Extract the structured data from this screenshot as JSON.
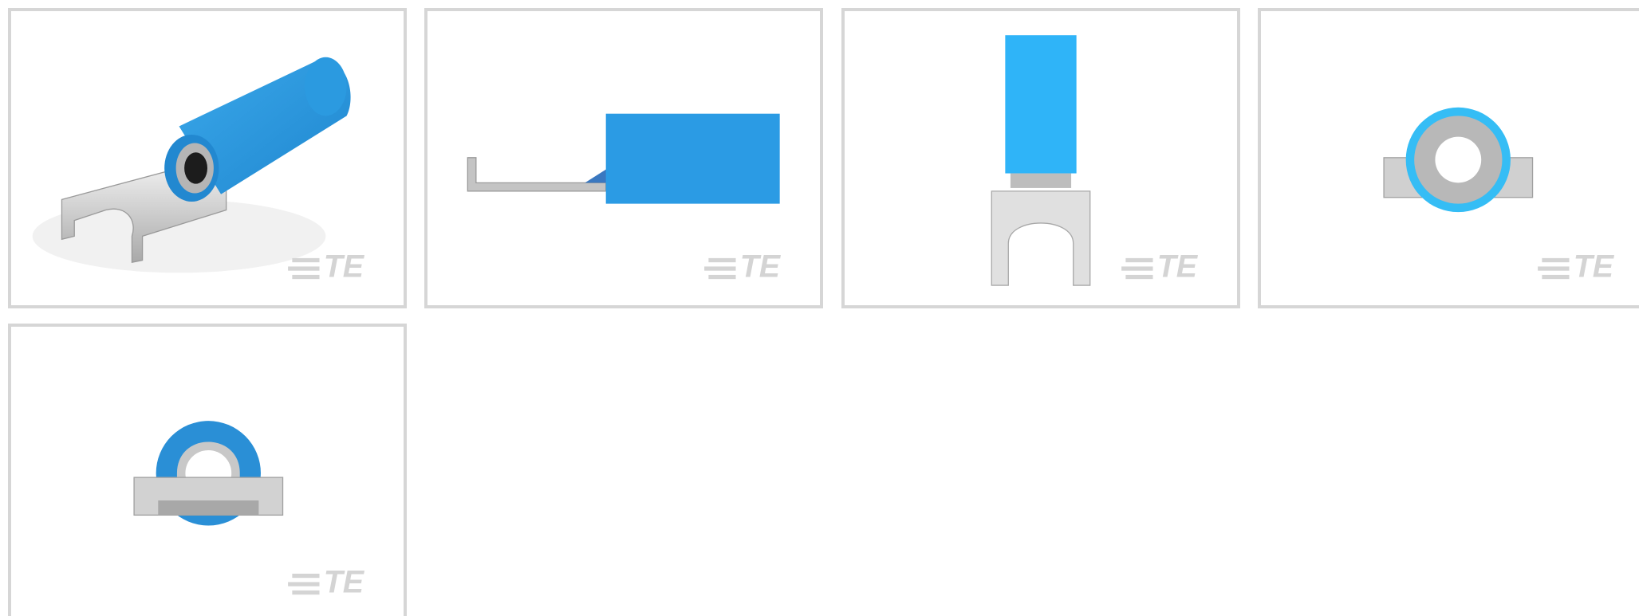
{
  "thumbnails": [
    {
      "watermark": "TE"
    },
    {
      "watermark": "TE"
    },
    {
      "watermark": "TE"
    },
    {
      "watermark": "TE"
    },
    {
      "watermark": "TE"
    }
  ]
}
